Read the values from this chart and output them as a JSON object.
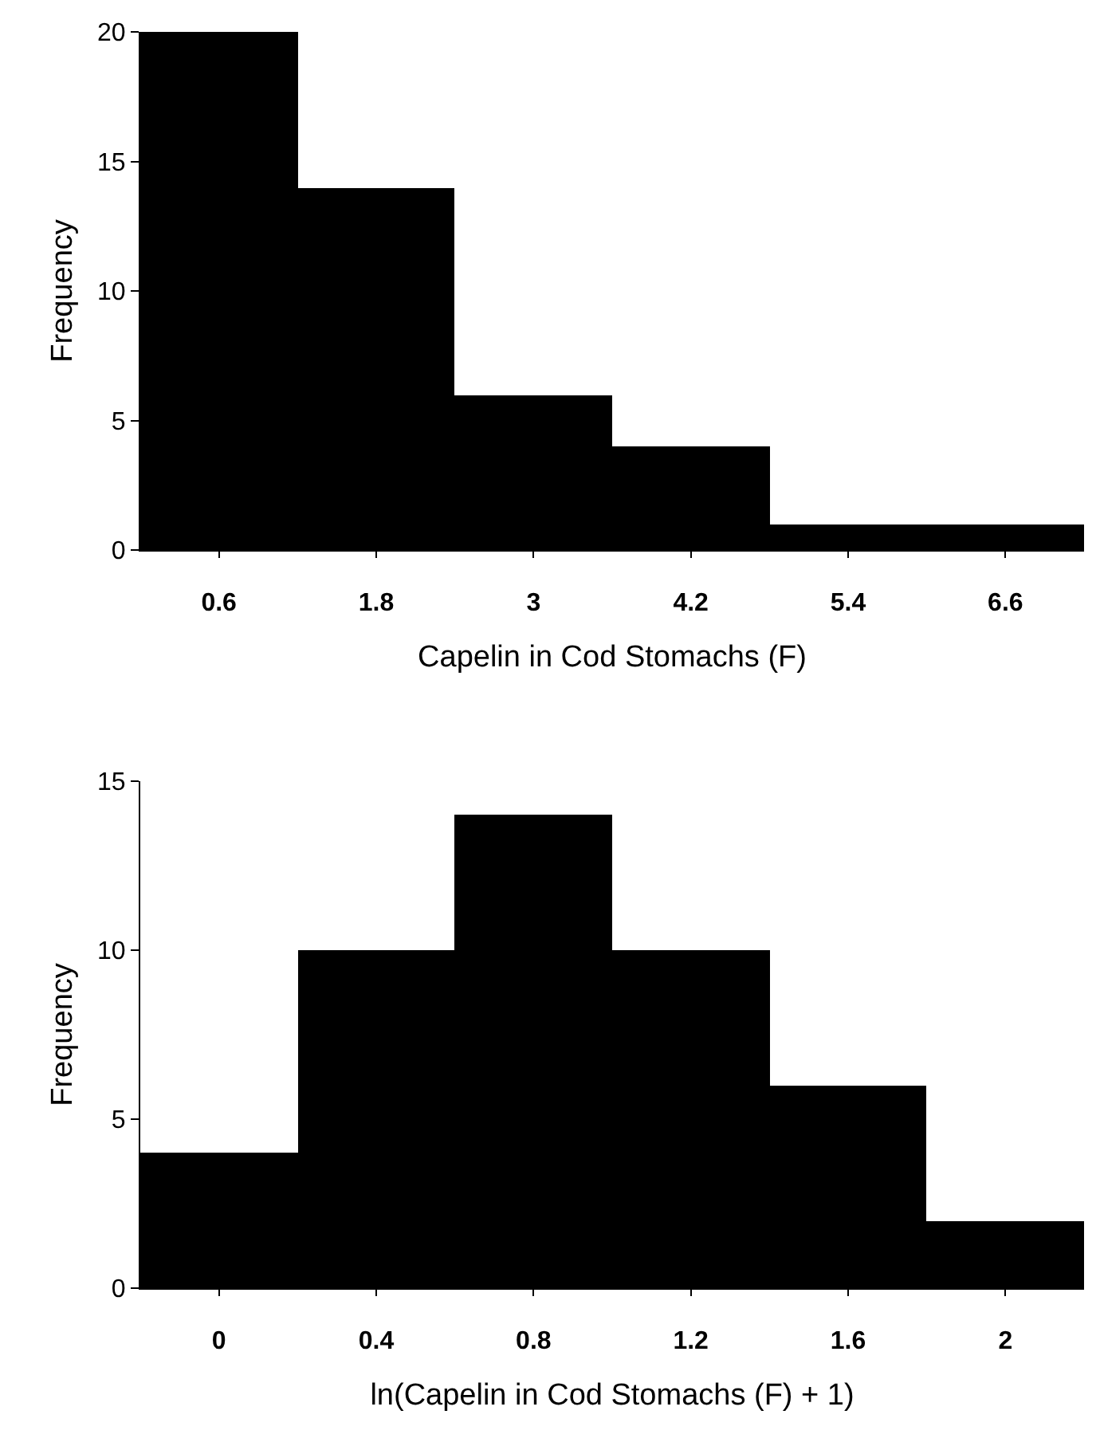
{
  "chart_data": [
    {
      "type": "histogram",
      "xlabel": "Capelin in Cod Stomachs (F)",
      "ylabel": "Frequency",
      "bins": [
        0,
        1.2,
        2.4,
        3.6,
        4.8,
        6.0,
        7.2
      ],
      "values": [
        20,
        14,
        6,
        4,
        1,
        1
      ],
      "color": "#000000",
      "xlim": [
        0,
        7.2
      ],
      "xticks": [
        0.6,
        1.8,
        3,
        4.2,
        5.4,
        6.6
      ],
      "ylim": [
        0,
        20
      ],
      "yticks": [
        0,
        5,
        10,
        15,
        20
      ]
    },
    {
      "type": "histogram",
      "xlabel": "ln(Capelin in Cod Stomachs (F) + 1)",
      "ylabel": "Frequency",
      "bins": [
        -0.2,
        0.2,
        0.6,
        1.0,
        1.4,
        1.8,
        2.2
      ],
      "values": [
        4,
        10,
        14,
        10,
        6,
        2
      ],
      "color": "#000000",
      "xlim": [
        -0.2,
        2.2
      ],
      "xticks": [
        0,
        0.4,
        0.8,
        1.2,
        1.6,
        2
      ],
      "ylim": [
        0,
        15
      ],
      "yticks": [
        0,
        5,
        10,
        15
      ]
    }
  ]
}
